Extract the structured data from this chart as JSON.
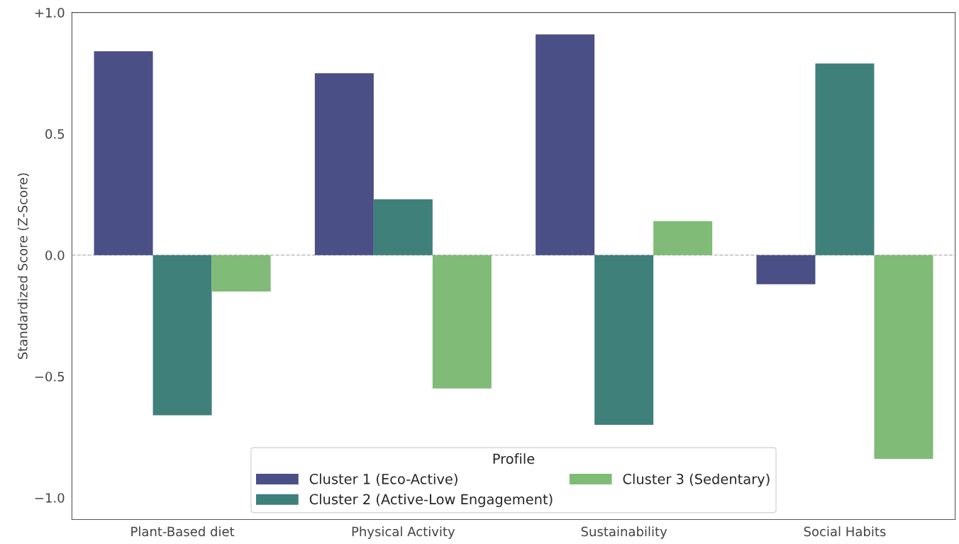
{
  "chart_data": {
    "type": "bar",
    "ylabel": "Standardized Score (Z-Score)",
    "legend_title": "Profile",
    "categories": [
      "Plant-Based diet",
      "Physical Activity",
      "Sustainability",
      "Social Habits"
    ],
    "series": [
      {
        "name": "Cluster 1 (Eco-Active)",
        "color": "#4a4f85",
        "values": [
          0.84,
          0.75,
          0.91,
          -0.12
        ]
      },
      {
        "name": "Cluster 2 (Active-Low Engagement)",
        "color": "#3f807b",
        "values": [
          -0.66,
          0.23,
          -0.7,
          0.79
        ]
      },
      {
        "name": "Cluster 3 (Sedentary)",
        "color": "#80bb78",
        "values": [
          -0.15,
          -0.55,
          0.14,
          -0.84
        ]
      }
    ],
    "ylim": [
      -1.09,
      1.0
    ],
    "yticks": [
      {
        "value": 1.0,
        "label": "+1.0"
      },
      0.5,
      {
        "value": 0.0,
        "label": "0.0"
      },
      {
        "value": -0.5,
        "label": "−0.5"
      },
      {
        "value": -1.0,
        "label": "−1.0"
      }
    ],
    "ref_lines": [
      {
        "axis": "y",
        "value": 0,
        "color": "#b0b0b0",
        "line_style": "dashed"
      }
    ],
    "grid": false,
    "legend": "bottom"
  }
}
